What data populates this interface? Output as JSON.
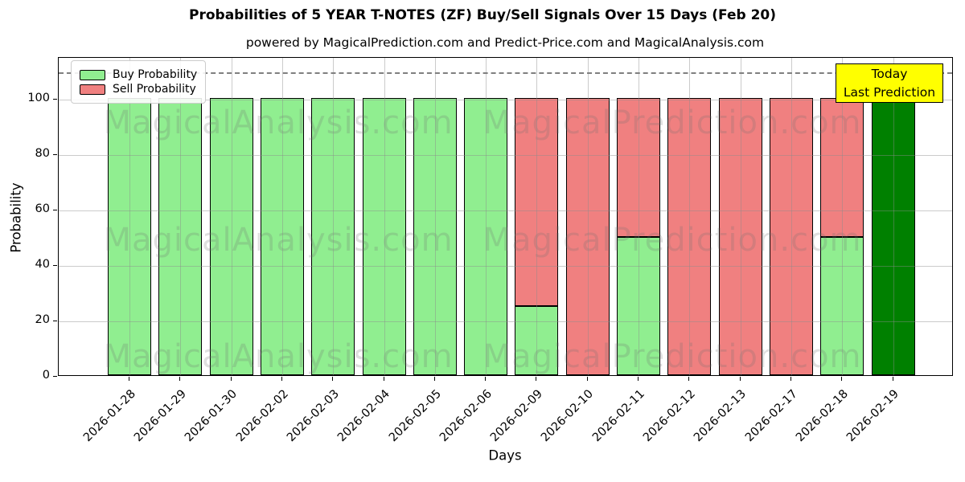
{
  "chart_data": {
    "type": "bar",
    "stacked": true,
    "title": "Probabilities of 5 YEAR T-NOTES (ZF) Buy/Sell Signals Over 15 Days (Feb 20)",
    "subtitle": "powered by MagicalPrediction.com and Predict-Price.com and MagicalAnalysis.com",
    "xlabel": "Days",
    "ylabel": "Probability",
    "ylim": [
      0,
      115
    ],
    "yticks": [
      0,
      20,
      40,
      60,
      80,
      100
    ],
    "dashed_guide_y": 110,
    "grid": true,
    "legend_position": "upper-left",
    "categories": [
      "2026-01-28",
      "2026-01-29",
      "2026-01-30",
      "2026-02-02",
      "2026-02-03",
      "2026-02-04",
      "2026-02-05",
      "2026-02-06",
      "2026-02-09",
      "2026-02-10",
      "2026-02-11",
      "2026-02-12",
      "2026-02-13",
      "2026-02-17",
      "2026-02-18",
      "2026-02-19"
    ],
    "series": [
      {
        "name": "Buy Probability",
        "color": "#90EE90",
        "in_legend": true,
        "values": [
          100,
          100,
          100,
          100,
          100,
          100,
          100,
          100,
          25,
          0,
          50,
          0,
          0,
          0,
          50,
          0
        ]
      },
      {
        "name": "Sell Probability",
        "color": "#F08080",
        "in_legend": true,
        "values": [
          0,
          0,
          0,
          0,
          0,
          0,
          0,
          0,
          75,
          100,
          50,
          100,
          100,
          100,
          50,
          0
        ]
      },
      {
        "name": "Today Last Prediction",
        "color": "#008000",
        "in_legend": false,
        "values": [
          0,
          0,
          0,
          0,
          0,
          0,
          0,
          0,
          0,
          0,
          0,
          0,
          0,
          0,
          0,
          100
        ]
      }
    ],
    "annotation": {
      "lines": [
        "Today",
        "Last Prediction"
      ],
      "bg_color": "#FFFF00",
      "border_color": "#000000"
    },
    "watermarks": {
      "left_text": "MagicalAnalysis.com",
      "right_text": "MagicalPrediction.com"
    },
    "colors": {
      "buy": "#90EE90",
      "sell": "#F08080",
      "today_bar": "#008000",
      "annotation_bg": "#FFFF00",
      "bar_edge": "#000000",
      "grid": "#8c8c8c",
      "dashed_guide": "#7f7f7f"
    }
  }
}
